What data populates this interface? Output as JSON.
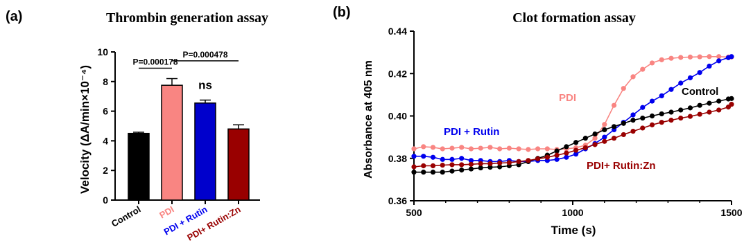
{
  "chart_data": [
    {
      "panel_label": "(a)",
      "type": "bar",
      "title": "Thrombin generation assay",
      "ylabel": "Velocity (ΔA/min×10⁻⁴)",
      "xlabel": "",
      "ylim": [
        0,
        10
      ],
      "yticks": [
        "0",
        "2",
        "4",
        "6",
        "8",
        "10"
      ],
      "categories": [
        "Control",
        "PDI",
        "PDI + Rutin",
        "PDI+ Rutin:Zn"
      ],
      "values": [
        4.5,
        7.75,
        6.55,
        4.8
      ],
      "errors": [
        0.08,
        0.45,
        0.2,
        0.28
      ],
      "bar_colors": [
        "#000000",
        "#F98582",
        "#0000CC",
        "#990000"
      ],
      "category_label_colors": [
        "#000000",
        "#F98582",
        "#0000EE",
        "#990000"
      ],
      "annotations": [
        {
          "text": "P=0.000178",
          "from": 0,
          "to": 1,
          "level": 8.9
        },
        {
          "text": "P=0.000478",
          "from": 1,
          "to": 3,
          "level": 9.4
        },
        {
          "text": "ns",
          "category": 2,
          "level": 7.5
        }
      ],
      "grid": false
    },
    {
      "panel_label": "(b)",
      "type": "line",
      "title": "Clot formation assay",
      "xlabel": "Time (s)",
      "ylabel": "Absorbance at 405 nm",
      "xlim": [
        500,
        1500
      ],
      "ylim": [
        0.36,
        0.44
      ],
      "xticks": [
        "500",
        "1000",
        "1500"
      ],
      "yticks": [
        "0.36",
        "0.38",
        "0.40",
        "0.42",
        "0.44"
      ],
      "grid": false,
      "series": [
        {
          "name": "PDI",
          "color": "#F98582",
          "x": [
            500,
            530,
            560,
            590,
            620,
            650,
            680,
            710,
            740,
            770,
            800,
            830,
            860,
            890,
            920,
            950,
            980,
            1010,
            1040,
            1070,
            1100,
            1130,
            1160,
            1190,
            1220,
            1250,
            1280,
            1310,
            1340,
            1370,
            1400,
            1430,
            1460,
            1490,
            1500
          ],
          "y": [
            0.3845,
            0.3855,
            0.3852,
            0.3845,
            0.3848,
            0.3852,
            0.3845,
            0.3848,
            0.3852,
            0.3845,
            0.3848,
            0.3845,
            0.3842,
            0.3845,
            0.3845,
            0.3842,
            0.3845,
            0.385,
            0.3862,
            0.3895,
            0.396,
            0.405,
            0.413,
            0.4185,
            0.422,
            0.425,
            0.4265,
            0.4272,
            0.4276,
            0.4278,
            0.4279,
            0.428,
            0.428,
            0.4278,
            0.4278
          ]
        },
        {
          "name": "PDI + Rutin",
          "color": "#0000EE",
          "x": [
            500,
            530,
            560,
            590,
            620,
            650,
            680,
            710,
            740,
            770,
            800,
            830,
            860,
            890,
            920,
            950,
            980,
            1010,
            1040,
            1070,
            1100,
            1130,
            1160,
            1190,
            1220,
            1250,
            1280,
            1310,
            1340,
            1370,
            1400,
            1430,
            1460,
            1490,
            1500
          ],
          "y": [
            0.381,
            0.381,
            0.3805,
            0.3795,
            0.3795,
            0.38,
            0.379,
            0.379,
            0.3785,
            0.3785,
            0.379,
            0.3785,
            0.3785,
            0.379,
            0.379,
            0.3795,
            0.3805,
            0.382,
            0.3845,
            0.387,
            0.39,
            0.3935,
            0.397,
            0.4005,
            0.404,
            0.407,
            0.4095,
            0.4125,
            0.4155,
            0.418,
            0.4205,
            0.4235,
            0.426,
            0.4275,
            0.428
          ]
        },
        {
          "name": "Control",
          "color": "#000000",
          "x": [
            500,
            530,
            560,
            590,
            620,
            650,
            680,
            710,
            740,
            770,
            800,
            830,
            860,
            890,
            920,
            950,
            980,
            1010,
            1040,
            1070,
            1100,
            1130,
            1160,
            1190,
            1220,
            1250,
            1280,
            1310,
            1340,
            1370,
            1400,
            1430,
            1460,
            1490,
            1500
          ],
          "y": [
            0.3735,
            0.3735,
            0.3735,
            0.3735,
            0.374,
            0.3745,
            0.375,
            0.3755,
            0.3758,
            0.376,
            0.3765,
            0.377,
            0.3785,
            0.38,
            0.3815,
            0.3835,
            0.3855,
            0.3875,
            0.3895,
            0.3915,
            0.3935,
            0.395,
            0.3965,
            0.398,
            0.399,
            0.4,
            0.401,
            0.4018,
            0.4028,
            0.4038,
            0.405,
            0.406,
            0.407,
            0.408,
            0.4082
          ]
        },
        {
          "name": "PDI+ Rutin:Zn",
          "color": "#990000",
          "x": [
            500,
            530,
            560,
            590,
            620,
            650,
            680,
            710,
            740,
            770,
            800,
            830,
            860,
            890,
            920,
            950,
            980,
            1010,
            1040,
            1070,
            1100,
            1130,
            1160,
            1190,
            1220,
            1250,
            1280,
            1310,
            1340,
            1370,
            1400,
            1430,
            1460,
            1490,
            1500
          ],
          "y": [
            0.376,
            0.3765,
            0.3765,
            0.3768,
            0.377,
            0.377,
            0.3772,
            0.3775,
            0.3775,
            0.3778,
            0.378,
            0.3785,
            0.379,
            0.3798,
            0.3805,
            0.3815,
            0.3825,
            0.3838,
            0.385,
            0.3865,
            0.388,
            0.3895,
            0.3912,
            0.3928,
            0.3943,
            0.3958,
            0.397,
            0.398,
            0.399,
            0.3998,
            0.4008,
            0.4018,
            0.4028,
            0.4042,
            0.4055
          ]
        }
      ],
      "series_labels": [
        {
          "text": "PDI",
          "series": 0
        },
        {
          "text": "PDI + Rutin",
          "series": 1
        },
        {
          "text": "Control",
          "series": 2
        },
        {
          "text": "PDI+ Rutin:Zn",
          "series": 3
        }
      ]
    }
  ]
}
